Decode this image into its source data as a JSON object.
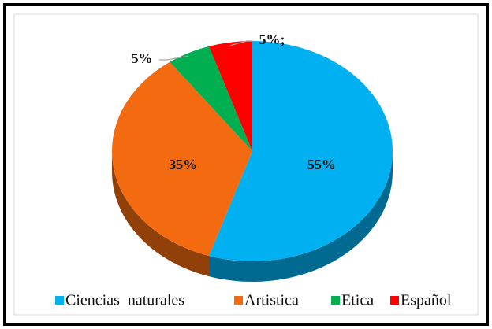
{
  "chart_data": {
    "type": "pie",
    "categories": [
      "Ciencias  naturales",
      "Artistica",
      "Etica",
      "Español"
    ],
    "values": [
      55,
      35,
      5,
      5
    ],
    "value_labels": [
      "55%",
      "35%",
      "5%",
      "5%;"
    ],
    "colors": [
      "#00b0f0",
      "#f36a10",
      "#00b050",
      "#ff0000"
    ],
    "legend": "bottom"
  }
}
